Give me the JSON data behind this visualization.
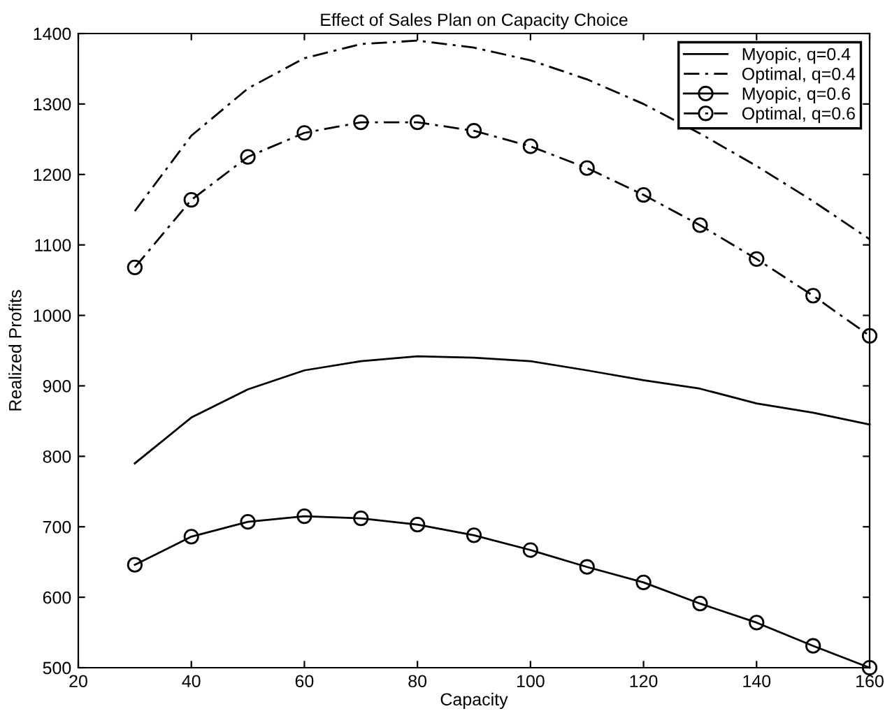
{
  "chart_data": {
    "type": "line",
    "title": "Effect of Sales Plan on Capacity Choice",
    "xlabel": "Capacity",
    "ylabel": "Realized Profits",
    "x": [
      30,
      40,
      50,
      60,
      70,
      80,
      90,
      100,
      110,
      120,
      130,
      140,
      150,
      160
    ],
    "series": [
      {
        "name": "Myopic, q=0.4",
        "color": "#000000",
        "line_style": "solid",
        "marker": "none",
        "values": [
          790,
          855,
          895,
          922,
          935,
          942,
          940,
          935,
          922,
          908,
          896,
          875,
          862,
          845
        ]
      },
      {
        "name": "Optimal, q=0.4",
        "color": "#000000",
        "line_style": "dashdot",
        "marker": "none",
        "values": [
          1148,
          1255,
          1322,
          1365,
          1385,
          1390,
          1380,
          1362,
          1335,
          1300,
          1258,
          1212,
          1162,
          1108
        ]
      },
      {
        "name": "Myopic, q=0.6",
        "color": "#000000",
        "line_style": "solid",
        "marker": "circle",
        "values": [
          646,
          686,
          707,
          715,
          712,
          703,
          688,
          667,
          643,
          621,
          591,
          564,
          531,
          500
        ]
      },
      {
        "name": "Optimal, q=0.6",
        "color": "#000000",
        "line_style": "dashdot",
        "marker": "circle",
        "values": [
          1068,
          1164,
          1225,
          1259,
          1274,
          1274,
          1262,
          1240,
          1209,
          1171,
          1128,
          1080,
          1028,
          971
        ]
      }
    ],
    "xlim": [
      20,
      160
    ],
    "xticks": [
      20,
      40,
      60,
      80,
      100,
      120,
      140,
      160
    ],
    "ylim": [
      500,
      1400
    ],
    "yticks": [
      500,
      600,
      700,
      800,
      900,
      1000,
      1100,
      1200,
      1300,
      1400
    ],
    "grid": false,
    "legend": "top right"
  }
}
